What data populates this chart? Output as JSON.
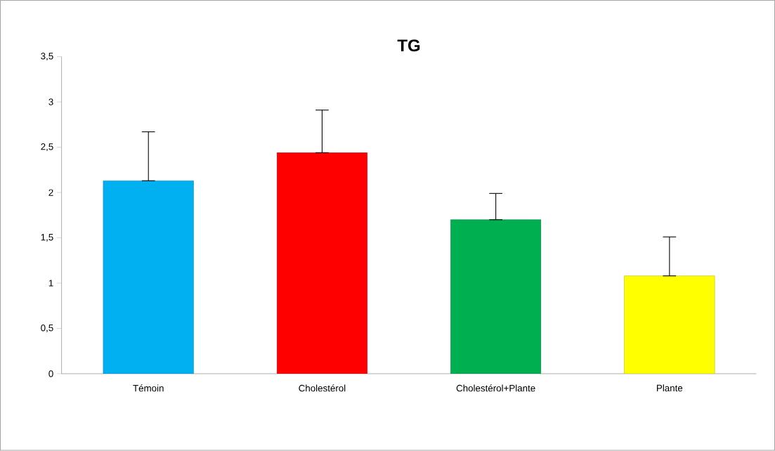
{
  "chart_data": {
    "type": "bar",
    "title": "TG",
    "categories": [
      "Témoin",
      "Cholestérol",
      "Cholestérol+Plante",
      "Plante"
    ],
    "values": [
      2.13,
      2.44,
      1.7,
      1.08
    ],
    "colors": [
      "#00b0f0",
      "#ff0000",
      "#00b050",
      "#ffff00"
    ],
    "errors": [
      [
        2.13,
        2.67
      ],
      [
        2.44,
        2.91
      ],
      [
        1.7,
        1.99
      ],
      [
        1.08,
        1.51
      ]
    ],
    "ylim": [
      0,
      3.5
    ],
    "yticks": [
      0,
      {
        "value": 0.5,
        "label": "0,5"
      },
      1,
      {
        "value": 1.5,
        "label": "1,5"
      },
      2,
      {
        "value": 2.5,
        "label": "2,5"
      },
      3,
      {
        "value": 3.5,
        "label": "3,5"
      }
    ],
    "grid": false
  }
}
